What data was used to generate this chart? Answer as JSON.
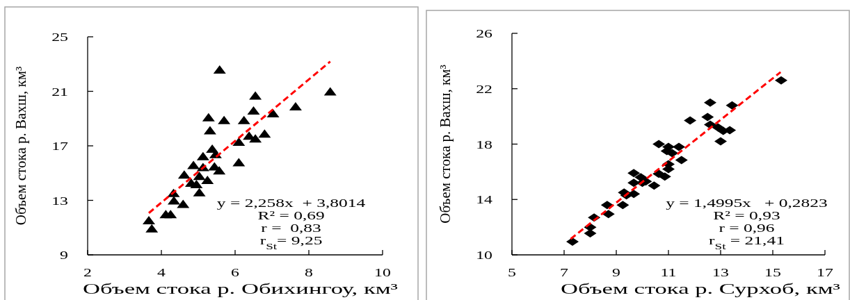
{
  "chart_data": [
    {
      "type": "scatter",
      "xlabel": "Объем стока р. Обихингоу, км³",
      "ylabel": "Объем стока р. Вахш, км³",
      "xlim": [
        2,
        10
      ],
      "xticks": [
        2,
        4,
        6,
        8,
        10
      ],
      "ylim": [
        9,
        25
      ],
      "yticks": [
        9,
        13,
        17,
        21,
        25
      ],
      "series": [
        {
          "color": "#000000",
          "marker": "triangle",
          "x": [
            5.58,
            8.58,
            6.55,
            7.64,
            6.5,
            7.03,
            5.28,
            5.7,
            6.24,
            5.32,
            6.38,
            6.55,
            6.8,
            6.1,
            5.38,
            5.47,
            5.13,
            6.1,
            4.87,
            5.13,
            5.44,
            5.57,
            4.62,
            5.03,
            5.25,
            4.81,
            4.95,
            5.03,
            4.33,
            4.34,
            4.59,
            4.12,
            4.25,
            3.66,
            3.74
          ],
          "values": [
            22.6,
            21.0,
            20.7,
            19.9,
            19.6,
            19.4,
            19.1,
            18.9,
            18.9,
            18.15,
            17.75,
            17.55,
            17.9,
            17.3,
            16.8,
            16.4,
            16.25,
            15.8,
            15.6,
            15.45,
            15.5,
            15.2,
            14.9,
            14.8,
            14.5,
            14.3,
            14.2,
            13.6,
            13.55,
            13.0,
            12.75,
            12.0,
            12.0,
            11.55,
            10.95
          ]
        },
        {
          "type": "line",
          "color": "#ff0000",
          "line_style": "dashed",
          "marker": "none",
          "x": [
            3.66,
            8.58
          ],
          "values": [
            12.07,
            23.18
          ]
        }
      ],
      "annotations": [
        "y = 2,258x  + 3,8014",
        "R² = 0,69",
        "r =  0,83",
        "r$_{St}$= 9,25"
      ]
    },
    {
      "type": "scatter",
      "xlabel": "Объем стока р. Сурхоб, км³",
      "ylabel": "Объем стока р. Вахш, км³",
      "xlim": [
        5,
        17
      ],
      "xticks": [
        5,
        7,
        9,
        11,
        13,
        15,
        17
      ],
      "ylim": [
        10,
        26
      ],
      "yticks": [
        10,
        14,
        18,
        22,
        26
      ],
      "series": [
        {
          "color": "#000000",
          "marker": "diamond",
          "x": [
            15.32,
            12.6,
            13.44,
            11.83,
            12.5,
            12.6,
            12.9,
            13.1,
            13.35,
            13.0,
            10.63,
            11.0,
            11.4,
            10.94,
            11.14,
            11.5,
            11.0,
            11.0,
            10.63,
            10.86,
            9.67,
            9.94,
            10.13,
            9.67,
            10.0,
            10.45,
            9.3,
            9.39,
            9.67,
            8.65,
            9.25,
            8.7,
            8.15,
            8.0,
            8.0,
            7.32
          ],
          "values": [
            22.6,
            21.0,
            20.8,
            19.7,
            19.95,
            19.4,
            19.2,
            18.95,
            19.0,
            18.2,
            18.0,
            17.8,
            17.8,
            17.5,
            17.35,
            16.85,
            16.55,
            16.2,
            15.85,
            15.65,
            15.9,
            15.6,
            15.3,
            15.2,
            15.2,
            15.0,
            14.5,
            14.3,
            14.4,
            13.6,
            13.6,
            12.95,
            12.7,
            12.0,
            11.55,
            10.95
          ]
        },
        {
          "type": "line",
          "color": "#ff0000",
          "line_style": "dashed",
          "marker": "none",
          "x": [
            7.25,
            15.3
          ],
          "values": [
            11.15,
            23.2
          ]
        }
      ],
      "annotations": [
        "y = 1,4995x   + 0,2823",
        "R² = 0,93",
        "r = 0,96",
        "r$_{St}$ = 21,41"
      ]
    }
  ]
}
